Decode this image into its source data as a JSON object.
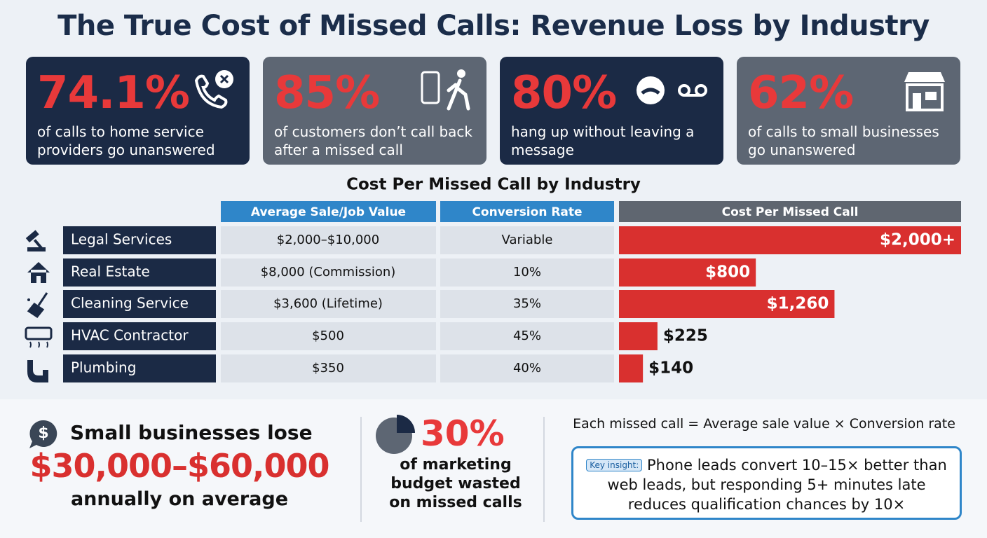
{
  "header": {
    "title": "The True Cost of Missed Calls: Revenue Loss by Industry"
  },
  "stats": [
    {
      "value": "74.1%",
      "text": "of calls to home service providers go unanswered"
    },
    {
      "value": "85%",
      "text": "of customers don’t call back after a missed call"
    },
    {
      "value": "80%",
      "text": "hang up without leaving a message"
    },
    {
      "value": "62%",
      "text": "of calls to small businesses go unanswered"
    }
  ],
  "chart_data": {
    "type": "bar",
    "title": "Cost Per Missed Call by Industry",
    "columns": [
      "Average Sale/Job Value",
      "Conversion Rate",
      "Cost Per Missed Call"
    ],
    "categories": [
      "Legal Services",
      "Real Estate",
      "Cleaning Service",
      "HVAC Contractor",
      "Plumbing"
    ],
    "avg_sale": [
      "$2,000–$10,000",
      "$8,000 (Commission)",
      "$3,600 (Lifetime)",
      "$500",
      "$350"
    ],
    "conversion": [
      "Variable",
      "10%",
      "35%",
      "45%",
      "40%"
    ],
    "values": [
      2000,
      800,
      1260,
      225,
      140
    ],
    "value_labels": [
      "$2,000+",
      "$800",
      "$1,260",
      "$225",
      "$140"
    ],
    "xlim": [
      0,
      2000
    ],
    "color": "#d9302f"
  },
  "summary": {
    "loss_intro": "Small businesses lose",
    "loss_range": "$30,000–$60,000",
    "loss_outro": "annually on average",
    "marketing_value": "30%",
    "marketing_text": "of marketing budget wasted on missed calls",
    "formula": "Each missed call = Average sale value × Conversion rate",
    "insight_badge": "Key insight:",
    "insight_text": "Phone leads convert 10–15× better than web leads, but responding 5+ minutes late reduces qualification chances by 10×"
  }
}
